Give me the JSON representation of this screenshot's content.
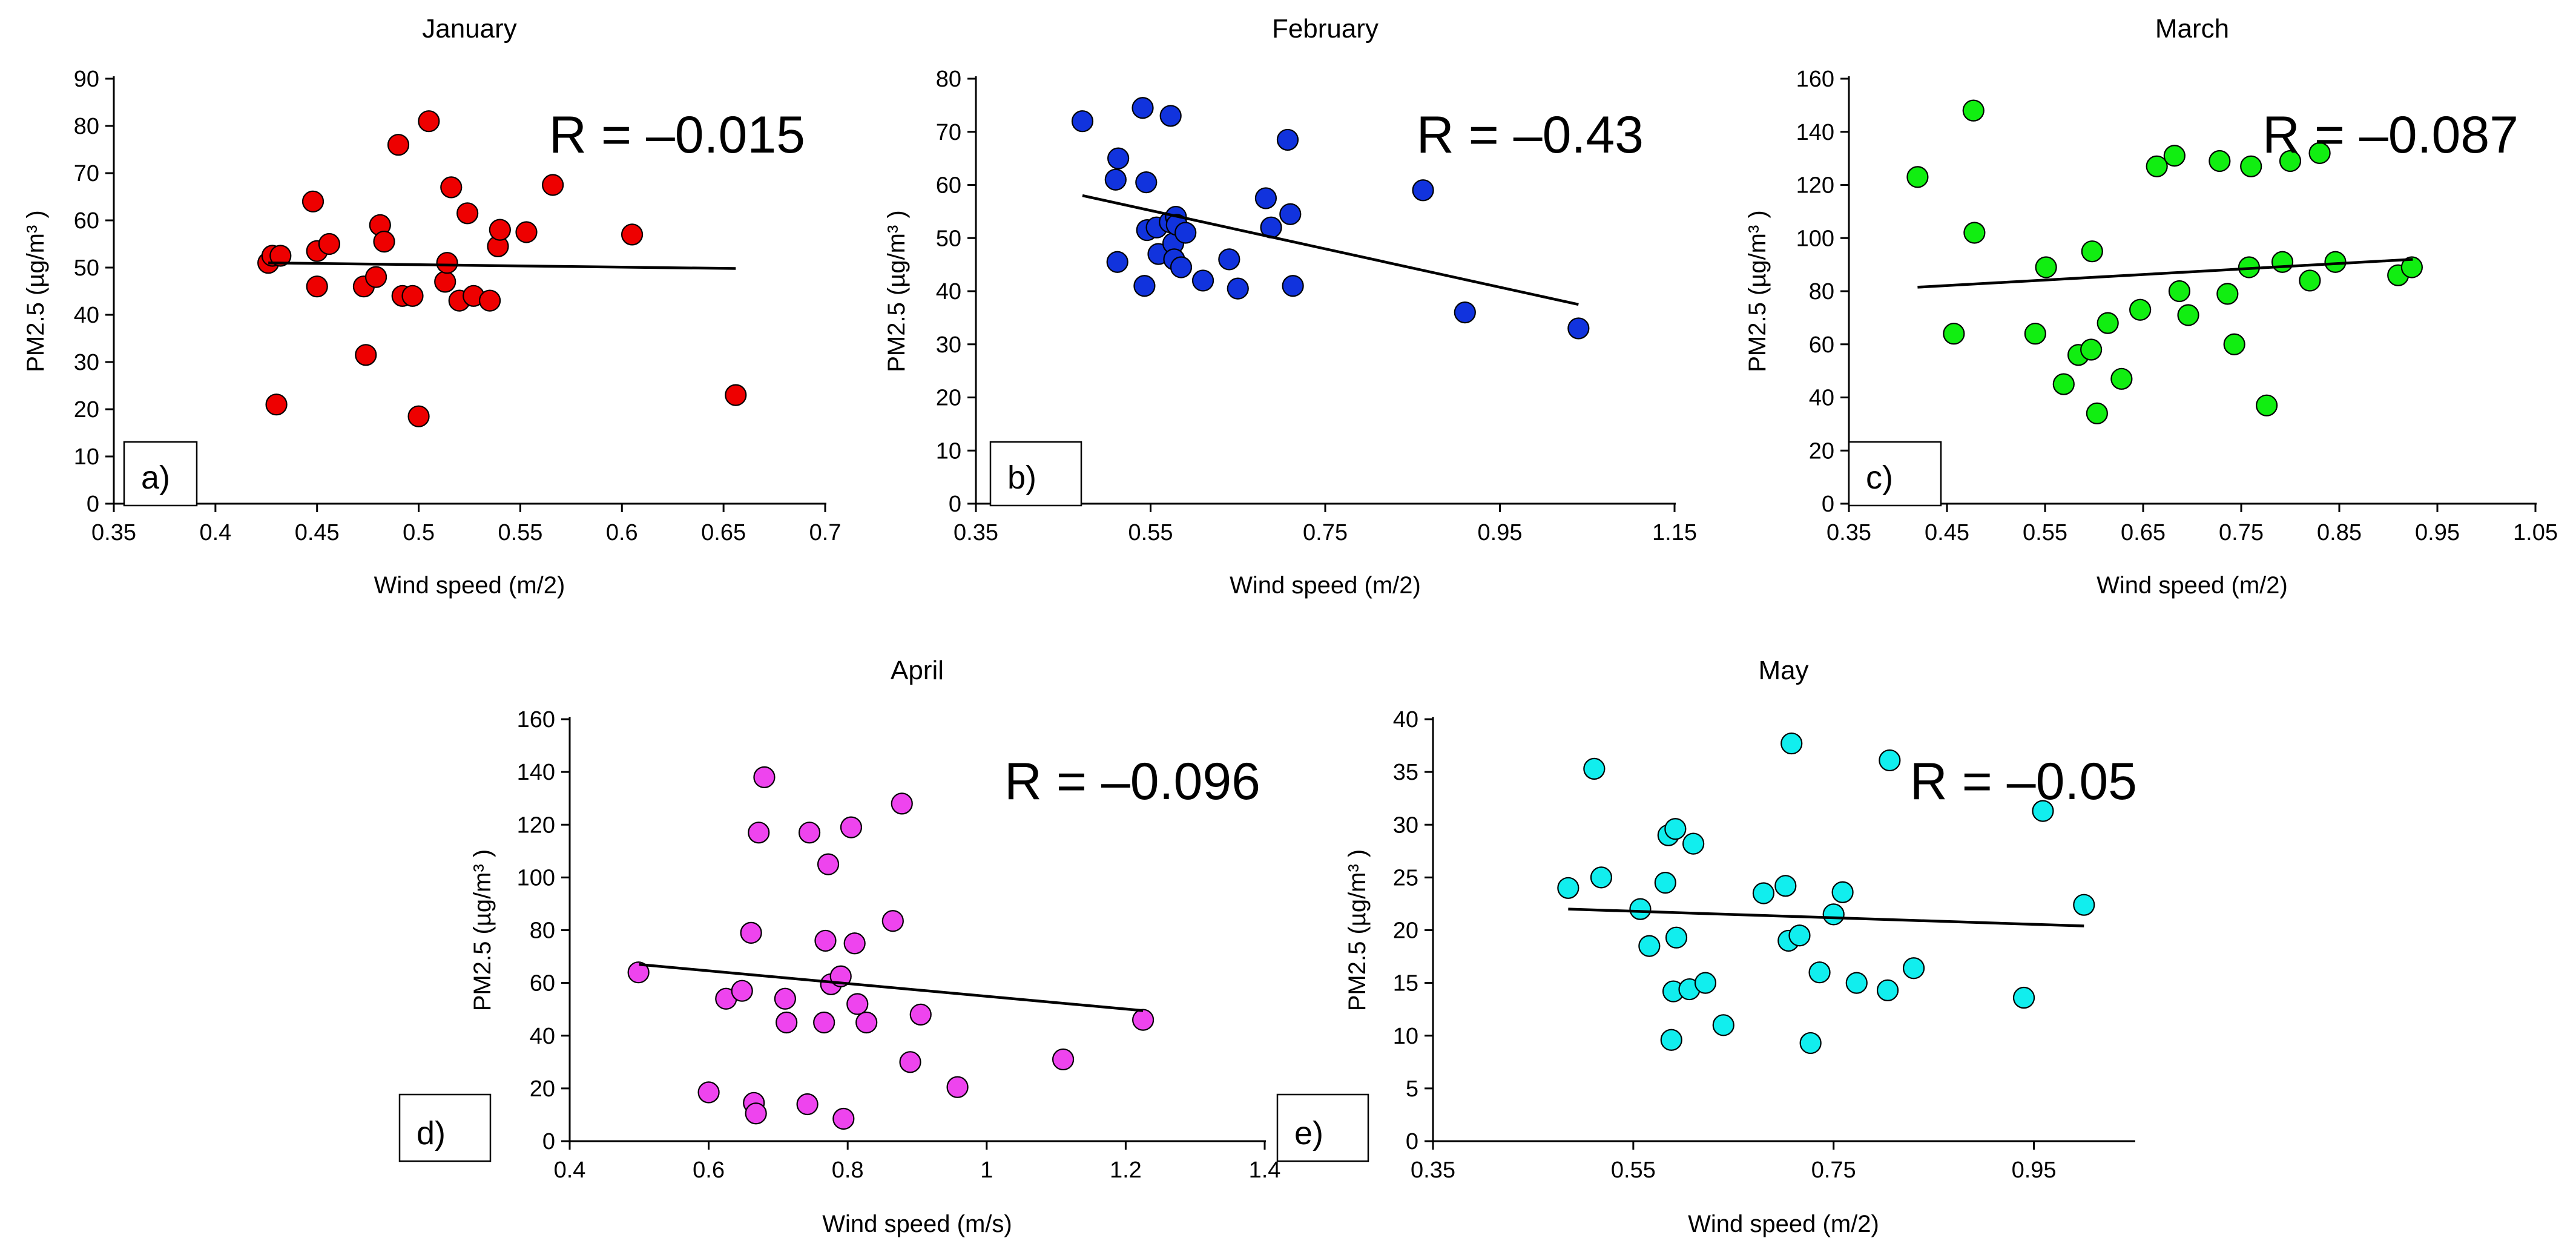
{
  "chart_data": [
    {
      "type": "scatter",
      "panel": "a)",
      "title": "January",
      "xlabel": "Wind speed (m/2)",
      "ylabel": "PM2.5 (µg/m³ )",
      "r_label": "R = –0.015",
      "xlim": [
        0.35,
        0.7
      ],
      "ylim": [
        0,
        90
      ],
      "xticks": [
        0.35,
        0.4,
        0.45,
        0.5,
        0.55,
        0.6,
        0.65,
        0.7
      ],
      "xtick_labels": [
        "0.35",
        "0.4",
        "0.45",
        "0.5",
        "0.55",
        "0.6",
        "0.65",
        "0.7"
      ],
      "yticks": [
        0,
        10,
        20,
        30,
        40,
        50,
        60,
        70,
        80,
        90
      ],
      "ytick_labels": [
        "0",
        "10",
        "20",
        "30",
        "40",
        "50",
        "60",
        "70",
        "80",
        "90"
      ],
      "color": "#ee0000",
      "trendline": {
        "x": [
          0.426,
          0.656
        ],
        "y": [
          51.0,
          49.8
        ]
      },
      "points": [
        [
          0.426,
          51
        ],
        [
          0.428,
          52.5
        ],
        [
          0.432,
          52.5
        ],
        [
          0.43,
          21
        ],
        [
          0.448,
          64
        ],
        [
          0.45,
          53.5
        ],
        [
          0.45,
          46
        ],
        [
          0.456,
          55
        ],
        [
          0.473,
          46
        ],
        [
          0.474,
          31.5
        ],
        [
          0.479,
          48
        ],
        [
          0.481,
          59
        ],
        [
          0.483,
          55.5
        ],
        [
          0.49,
          76
        ],
        [
          0.492,
          44
        ],
        [
          0.497,
          44
        ],
        [
          0.5,
          18.5
        ],
        [
          0.505,
          81
        ],
        [
          0.513,
          47
        ],
        [
          0.514,
          51
        ],
        [
          0.516,
          67
        ],
        [
          0.52,
          43
        ],
        [
          0.524,
          61.5
        ],
        [
          0.527,
          44
        ],
        [
          0.535,
          43
        ],
        [
          0.539,
          54.5
        ],
        [
          0.54,
          58
        ],
        [
          0.553,
          57.5
        ],
        [
          0.566,
          67.5
        ],
        [
          0.605,
          57
        ],
        [
          0.656,
          23
        ]
      ]
    },
    {
      "type": "scatter",
      "panel": "b)",
      "title": "February",
      "xlabel": "Wind speed (m/2)",
      "ylabel": "PM2.5 (µg/m³ )",
      "r_label": "R = –0.43",
      "xlim": [
        0.35,
        1.15
      ],
      "ylim": [
        0,
        80
      ],
      "xticks": [
        0.35,
        0.55,
        0.75,
        0.95,
        1.15
      ],
      "xtick_labels": [
        "0.35",
        "0.55",
        "0.75",
        "0.95",
        "1.15"
      ],
      "yticks": [
        0,
        10,
        20,
        30,
        40,
        50,
        60,
        70,
        80
      ],
      "ytick_labels": [
        "0",
        "10",
        "20",
        "30",
        "40",
        "50",
        "60",
        "70",
        "80"
      ],
      "color": "#1133dd",
      "trendline": {
        "x": [
          0.472,
          1.04
        ],
        "y": [
          58.0,
          37.5
        ]
      },
      "points": [
        [
          0.472,
          72
        ],
        [
          0.51,
          61
        ],
        [
          0.513,
          65
        ],
        [
          0.512,
          45.5
        ],
        [
          0.541,
          74.5
        ],
        [
          0.543,
          41
        ],
        [
          0.545,
          60.5
        ],
        [
          0.546,
          51.5
        ],
        [
          0.557,
          52
        ],
        [
          0.559,
          47
        ],
        [
          0.572,
          53
        ],
        [
          0.573,
          73
        ],
        [
          0.576,
          49
        ],
        [
          0.577,
          46
        ],
        [
          0.579,
          54
        ],
        [
          0.58,
          52.5
        ],
        [
          0.585,
          44.5
        ],
        [
          0.59,
          51
        ],
        [
          0.61,
          42
        ],
        [
          0.64,
          46
        ],
        [
          0.65,
          40.5
        ],
        [
          0.682,
          57.5
        ],
        [
          0.688,
          52
        ],
        [
          0.707,
          68.5
        ],
        [
          0.71,
          54.5
        ],
        [
          0.713,
          41
        ],
        [
          0.862,
          59
        ],
        [
          0.91,
          36
        ],
        [
          1.04,
          33
        ]
      ]
    },
    {
      "type": "scatter",
      "panel": "c)",
      "title": "March",
      "xlabel": "Wind speed (m/2)",
      "ylabel": "PM2.5 (µg/m³ )",
      "r_label": "R = –0.087",
      "xlim": [
        0.35,
        1.05
      ],
      "ylim": [
        0,
        160
      ],
      "xticks": [
        0.35,
        0.45,
        0.55,
        0.65,
        0.75,
        0.85,
        0.95,
        1.05
      ],
      "xtick_labels": [
        "0.35",
        "0.45",
        "0.55",
        "0.65",
        "0.75",
        "0.85",
        "0.95",
        "1.05"
      ],
      "yticks": [
        0,
        20,
        40,
        60,
        80,
        100,
        120,
        140,
        160
      ],
      "ytick_labels": [
        "0",
        "20",
        "40",
        "60",
        "80",
        "100",
        "120",
        "140",
        "160"
      ],
      "color": "#11ee11",
      "trendline": {
        "x": [
          0.42,
          0.925
        ],
        "y": [
          81.5,
          92.0
        ]
      },
      "points": [
        [
          0.42,
          123
        ],
        [
          0.457,
          64
        ],
        [
          0.477,
          148
        ],
        [
          0.478,
          102
        ],
        [
          0.54,
          64
        ],
        [
          0.551,
          89
        ],
        [
          0.569,
          45
        ],
        [
          0.584,
          56
        ],
        [
          0.597,
          58
        ],
        [
          0.598,
          95
        ],
        [
          0.603,
          34
        ],
        [
          0.614,
          68
        ],
        [
          0.628,
          47
        ],
        [
          0.647,
          73
        ],
        [
          0.664,
          127
        ],
        [
          0.682,
          131
        ],
        [
          0.687,
          80
        ],
        [
          0.696,
          71
        ],
        [
          0.728,
          129
        ],
        [
          0.736,
          79
        ],
        [
          0.743,
          60
        ],
        [
          0.758,
          89
        ],
        [
          0.76,
          127
        ],
        [
          0.776,
          37
        ],
        [
          0.792,
          91
        ],
        [
          0.8,
          129
        ],
        [
          0.82,
          84
        ],
        [
          0.83,
          132
        ],
        [
          0.846,
          91
        ],
        [
          0.91,
          86
        ],
        [
          0.924,
          89
        ]
      ]
    },
    {
      "type": "scatter",
      "panel": "d)",
      "title": "April",
      "xlabel": "Wind speed (m/s)",
      "ylabel": "PM2.5 (µg/m³ )",
      "r_label": "R = –0.096",
      "xlim": [
        0.4,
        1.4
      ],
      "ylim": [
        0,
        160
      ],
      "xticks": [
        0.4,
        0.6,
        0.8,
        1.0,
        1.2,
        1.4
      ],
      "xtick_labels": [
        "0.4",
        "0.6",
        "0.8",
        "1",
        "1.2",
        "1.4"
      ],
      "yticks": [
        0,
        20,
        40,
        60,
        80,
        100,
        120,
        140,
        160
      ],
      "ytick_labels": [
        "0",
        "20",
        "40",
        "60",
        "80",
        "100",
        "120",
        "140",
        "160"
      ],
      "color": "#ee44ee",
      "trendline": {
        "x": [
          0.5,
          1.225
        ],
        "y": [
          67.0,
          49.5
        ]
      },
      "points": [
        [
          0.499,
          64
        ],
        [
          0.6,
          18.5
        ],
        [
          0.625,
          54
        ],
        [
          0.648,
          57
        ],
        [
          0.661,
          79
        ],
        [
          0.665,
          14.5
        ],
        [
          0.668,
          10.5
        ],
        [
          0.672,
          117
        ],
        [
          0.68,
          138
        ],
        [
          0.71,
          54
        ],
        [
          0.712,
          45
        ],
        [
          0.742,
          14
        ],
        [
          0.745,
          117
        ],
        [
          0.766,
          45
        ],
        [
          0.768,
          76
        ],
        [
          0.772,
          105
        ],
        [
          0.776,
          59.5
        ],
        [
          0.79,
          62.5
        ],
        [
          0.794,
          8.5
        ],
        [
          0.805,
          119
        ],
        [
          0.81,
          75
        ],
        [
          0.814,
          52
        ],
        [
          0.827,
          45
        ],
        [
          0.865,
          83.5
        ],
        [
          0.878,
          128
        ],
        [
          0.89,
          30
        ],
        [
          0.905,
          48
        ],
        [
          0.958,
          20.5
        ],
        [
          1.11,
          31
        ],
        [
          1.225,
          46
        ]
      ]
    },
    {
      "type": "scatter",
      "panel": "e)",
      "title": "May",
      "xlabel": "Wind speed (m/2)",
      "ylabel": "PM2.5 (µg/m³ )",
      "r_label": "R = –0.05",
      "xlim": [
        0.35,
        1.05
      ],
      "ylim": [
        0,
        40
      ],
      "xticks": [
        0.35,
        0.55,
        0.75,
        0.95
      ],
      "xtick_labels": [
        "0.35",
        "0.55",
        "0.75",
        "0.95"
      ],
      "yticks": [
        0,
        5,
        10,
        15,
        20,
        25,
        30,
        35,
        40
      ],
      "ytick_labels": [
        "0",
        "5",
        "10",
        "15",
        "20",
        "25",
        "30",
        "35",
        "40"
      ],
      "color": "#11eeee",
      "trendline": {
        "x": [
          0.485,
          1.0
        ],
        "y": [
          22.0,
          20.4
        ]
      },
      "points": [
        [
          0.485,
          24
        ],
        [
          0.511,
          35.3
        ],
        [
          0.518,
          25
        ],
        [
          0.557,
          22
        ],
        [
          0.566,
          18.5
        ],
        [
          0.582,
          24.5
        ],
        [
          0.585,
          29
        ],
        [
          0.588,
          9.6
        ],
        [
          0.59,
          14.2
        ],
        [
          0.592,
          29.6
        ],
        [
          0.593,
          19.3
        ],
        [
          0.606,
          14.4
        ],
        [
          0.61,
          28.2
        ],
        [
          0.622,
          15
        ],
        [
          0.64,
          11
        ],
        [
          0.68,
          23.5
        ],
        [
          0.702,
          24.2
        ],
        [
          0.705,
          19
        ],
        [
          0.708,
          37.7
        ],
        [
          0.716,
          19.5
        ],
        [
          0.727,
          9.3
        ],
        [
          0.736,
          16
        ],
        [
          0.75,
          21.5
        ],
        [
          0.759,
          23.6
        ],
        [
          0.773,
          15
        ],
        [
          0.804,
          14.3
        ],
        [
          0.806,
          36.1
        ],
        [
          0.83,
          16.4
        ],
        [
          0.94,
          13.6
        ],
        [
          0.959,
          31.3
        ],
        [
          1.0,
          22.4
        ]
      ]
    }
  ]
}
